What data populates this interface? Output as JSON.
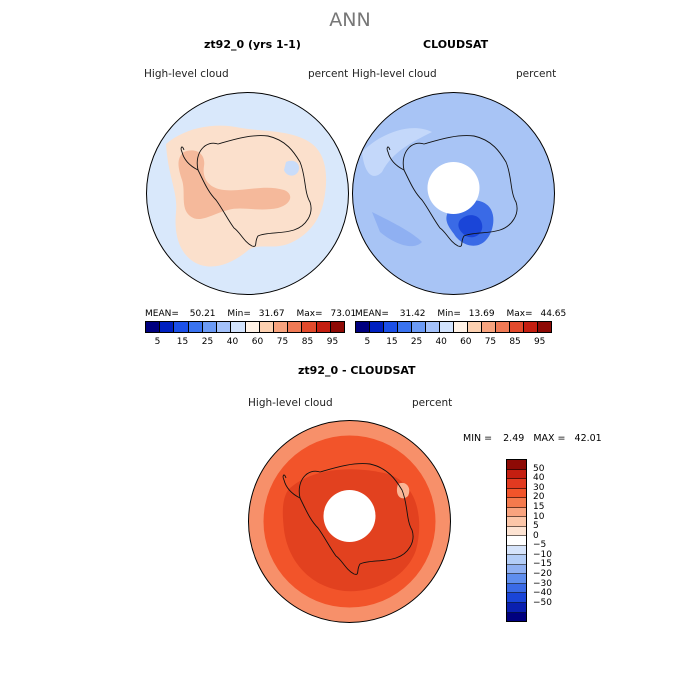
{
  "page": {
    "title": "ANN"
  },
  "panels": {
    "model": {
      "title": "zt92_0 (yrs 1-1)",
      "left_label": "High-level cloud",
      "right_label": "percent",
      "stats": {
        "mean_label": "MEAN=",
        "mean": "50.21",
        "min_label": "Min=",
        "min": "31.67",
        "max_label": "Max=",
        "max": "73.01"
      }
    },
    "obs": {
      "title": "CLOUDSAT",
      "left_label": "High-level cloud",
      "right_label": "percent",
      "stats": {
        "mean_label": "MEAN=",
        "mean": "31.42",
        "min_label": "Min=",
        "min": "13.69",
        "max_label": "Max=",
        "max": "44.65"
      }
    },
    "diff": {
      "title": "zt92_0 - CLOUDSAT",
      "left_label": "High-level cloud",
      "right_label": "percent",
      "minmax": {
        "min_label": "MIN =",
        "min": "2.49",
        "max_label": "MAX =",
        "max": "42.01"
      }
    }
  },
  "colorbars": {
    "abs": {
      "ticks": [
        "5",
        "15",
        "25",
        "40",
        "60",
        "75",
        "85",
        "95"
      ],
      "colors": [
        "#00007f",
        "#0020c0",
        "#1c50e8",
        "#3a73f0",
        "#6b9af5",
        "#a3c1fa",
        "#d2e3fd",
        "#fff2e6",
        "#fcd0b0",
        "#f7a37e",
        "#f07a55",
        "#e24a2c",
        "#c41e10",
        "#8e0a05"
      ]
    },
    "diff": {
      "ticks": [
        "50",
        "40",
        "30",
        "20",
        "15",
        "10",
        "5",
        "0",
        "−5",
        "−10",
        "−15",
        "−20",
        "−30",
        "−40",
        "−50"
      ],
      "colors": [
        "#8e0a05",
        "#c41e10",
        "#e23a20",
        "#f2542a",
        "#f57a4d",
        "#f9a37e",
        "#fcc6a8",
        "#fde3d2",
        "#ffffff",
        "#d6e4fb",
        "#b3cdf7",
        "#8fb0f2",
        "#5f8eee",
        "#3a6ae6",
        "#1a45d8",
        "#0a20b0",
        "#00007f"
      ]
    }
  },
  "map_colors": {
    "ocean_light": "#d9e8fb",
    "tan": "#fbe0cc",
    "salmon": "#f5b99b",
    "blue_mid": "#b3cdf7",
    "blue_base": "#a8c4f5",
    "blue_deep": "#3a6ae6",
    "blue_darkest": "#1a45d8",
    "diff_base": "#f2542a",
    "diff_light": "#f7906a",
    "diff_dark": "#e2411f",
    "coast": "#111111"
  }
}
